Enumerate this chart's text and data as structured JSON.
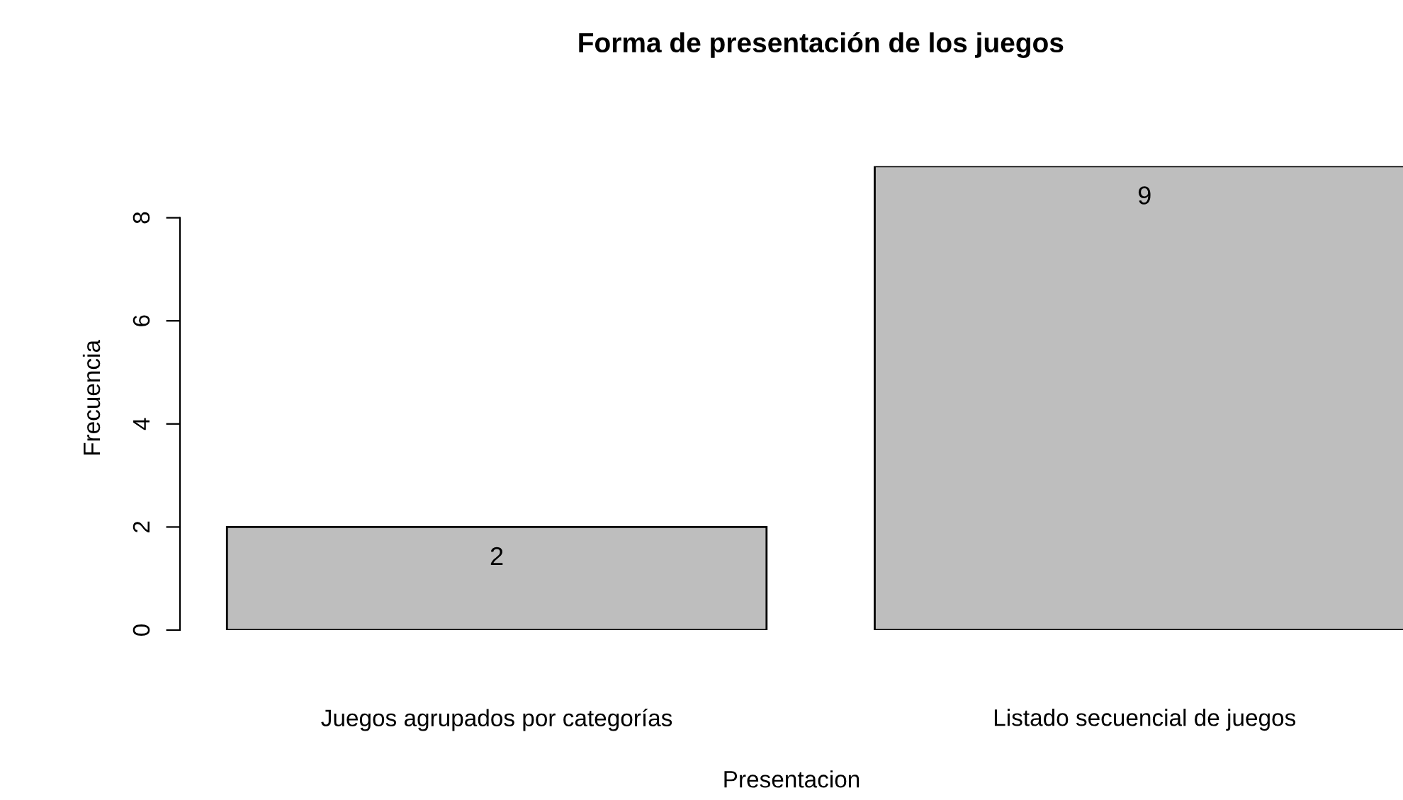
{
  "chart_data": {
    "type": "bar",
    "title": "Forma de presentación de los juegos",
    "xlabel": "Presentacion",
    "ylabel": "Frecuencia",
    "categories": [
      "Juegos agrupados por categorías",
      "Listado secuencial de juegos"
    ],
    "values": [
      2,
      9
    ],
    "color": "#bebebe",
    "ylim": [
      0,
      9
    ],
    "yticks": [
      0,
      2,
      4,
      6,
      8
    ],
    "data_labels": true,
    "grid": false,
    "legend": false
  }
}
